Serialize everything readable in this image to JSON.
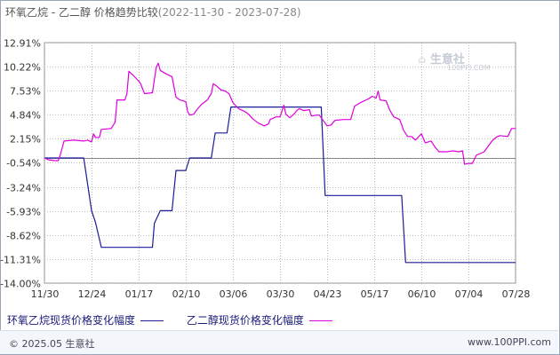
{
  "title": {
    "main": "环氧乙烷 - 乙二醇 价格趋势比较",
    "dates": "(2022-11-30 - 2023-07-28)"
  },
  "watermark": {
    "logo_text": "生意社",
    "url": "100PPI.COM"
  },
  "footer": {
    "left": "© 2025.05 生意社",
    "right": "www.100PPI.com"
  },
  "colors": {
    "series1": "#1c1c99",
    "series2": "#dd00dd",
    "grid": "#bbbbbb",
    "zero_line": "#888888"
  },
  "chart_data": {
    "type": "line",
    "y_ticks": [
      "12.91%",
      "10.22%",
      "7.53%",
      "4.84%",
      "2.15%",
      "-0.54%",
      "-3.24%",
      "-5.93%",
      "-8.62%",
      "-11.31%",
      "-14.00%"
    ],
    "y_values": [
      12.91,
      10.22,
      7.53,
      4.84,
      2.15,
      -0.54,
      -3.24,
      -5.93,
      -8.62,
      -11.31,
      -14.0
    ],
    "ylim": [
      -14.0,
      12.91
    ],
    "x_ticks": [
      "11/30",
      "12/24",
      "01/17",
      "02/10",
      "03/06",
      "03/30",
      "04/23",
      "05/17",
      "06/10",
      "07/04",
      "07/28"
    ],
    "x_dates": [
      "2022-11-30",
      "2022-12-24",
      "2023-01-17",
      "2023-02-10",
      "2023-03-06",
      "2023-03-30",
      "2023-04-23",
      "2023-05-17",
      "2023-06-10",
      "2023-07-04",
      "2023-07-28"
    ],
    "zero_line": 0,
    "grid": true,
    "legend_position": "bottom-left",
    "series": [
      {
        "name": "环氧乙烷现货价格变化幅度",
        "color": "#1c1c99",
        "points": [
          [
            "2022-11-30",
            0
          ],
          [
            "2022-12-20",
            0
          ],
          [
            "2022-12-24",
            -5.9
          ],
          [
            "2022-12-26",
            -7.2
          ],
          [
            "2022-12-29",
            -10.0
          ],
          [
            "2023-01-15",
            -10.0
          ],
          [
            "2023-01-18",
            -10.0
          ],
          [
            "2023-01-24",
            -10.0
          ],
          [
            "2023-01-25",
            -7.3
          ],
          [
            "2023-01-28",
            -5.9
          ],
          [
            "2023-02-03",
            -5.9
          ],
          [
            "2023-02-05",
            -1.4
          ],
          [
            "2023-02-10",
            -1.4
          ],
          [
            "2023-02-12",
            0
          ],
          [
            "2023-02-23",
            0
          ],
          [
            "2023-02-25",
            2.8
          ],
          [
            "2023-03-03",
            2.8
          ],
          [
            "2023-03-05",
            5.7
          ],
          [
            "2023-04-20",
            5.7
          ],
          [
            "2023-04-22",
            -4.2
          ],
          [
            "2023-05-31",
            -4.2
          ],
          [
            "2023-06-02",
            -11.7
          ],
          [
            "2023-07-28",
            -11.7
          ]
        ]
      },
      {
        "name": "乙二醇现货价格变化幅度",
        "color": "#dd00dd",
        "points": [
          [
            "2022-11-30",
            0
          ],
          [
            "2022-12-02",
            -0.2
          ],
          [
            "2022-12-05",
            -0.3
          ],
          [
            "2022-12-07",
            -0.3
          ],
          [
            "2022-12-08",
            0.3
          ],
          [
            "2022-12-10",
            1.9
          ],
          [
            "2022-12-15",
            2.0
          ],
          [
            "2022-12-20",
            1.9
          ],
          [
            "2022-12-22",
            2.0
          ],
          [
            "2022-12-24",
            1.8
          ],
          [
            "2022-12-25",
            2.7
          ],
          [
            "2022-12-26",
            2.3
          ],
          [
            "2022-12-28",
            2.3
          ],
          [
            "2022-12-29",
            3.2
          ],
          [
            "2023-01-03",
            3.3
          ],
          [
            "2023-01-05",
            4.0
          ],
          [
            "2023-01-06",
            6.5
          ],
          [
            "2023-01-08",
            6.5
          ],
          [
            "2023-01-10",
            6.5
          ],
          [
            "2023-01-11",
            7.2
          ],
          [
            "2023-01-12",
            9.7
          ],
          [
            "2023-01-14",
            9.3
          ],
          [
            "2023-01-17",
            8.6
          ],
          [
            "2023-01-18",
            8.3
          ],
          [
            "2023-01-20",
            7.2
          ],
          [
            "2023-01-24",
            7.3
          ],
          [
            "2023-01-25",
            8.8
          ],
          [
            "2023-01-26",
            10.2
          ],
          [
            "2023-01-27",
            10.6
          ],
          [
            "2023-01-28",
            9.8
          ],
          [
            "2023-01-31",
            9.4
          ],
          [
            "2023-02-03",
            9.1
          ],
          [
            "2023-02-05",
            6.8
          ],
          [
            "2023-02-07",
            6.5
          ],
          [
            "2023-02-10",
            6.3
          ],
          [
            "2023-02-11",
            5.2
          ],
          [
            "2023-02-12",
            4.8
          ],
          [
            "2023-02-14",
            4.9
          ],
          [
            "2023-02-16",
            5.5
          ],
          [
            "2023-02-18",
            6.0
          ],
          [
            "2023-02-21",
            6.5
          ],
          [
            "2023-02-23",
            7.2
          ],
          [
            "2023-02-24",
            8.3
          ],
          [
            "2023-02-26",
            8.0
          ],
          [
            "2023-02-28",
            7.6
          ],
          [
            "2023-03-02",
            7.5
          ],
          [
            "2023-03-04",
            7.2
          ],
          [
            "2023-03-06",
            6.2
          ],
          [
            "2023-03-09",
            5.5
          ],
          [
            "2023-03-12",
            5.2
          ],
          [
            "2023-03-14",
            4.9
          ],
          [
            "2023-03-16",
            4.4
          ],
          [
            "2023-03-19",
            3.9
          ],
          [
            "2023-03-22",
            3.6
          ],
          [
            "2023-03-24",
            3.8
          ],
          [
            "2023-03-25",
            4.3
          ],
          [
            "2023-03-28",
            4.6
          ],
          [
            "2023-03-30",
            4.6
          ],
          [
            "2023-04-01",
            5.9
          ],
          [
            "2023-04-02",
            4.9
          ],
          [
            "2023-04-04",
            4.5
          ],
          [
            "2023-04-06",
            4.9
          ],
          [
            "2023-04-08",
            5.4
          ],
          [
            "2023-04-09",
            5.5
          ],
          [
            "2023-04-11",
            5.3
          ],
          [
            "2023-04-14",
            5.4
          ],
          [
            "2023-04-15",
            4.7
          ],
          [
            "2023-04-18",
            4.8
          ],
          [
            "2023-04-19",
            4.8
          ],
          [
            "2023-04-21",
            4.2
          ],
          [
            "2023-04-23",
            3.6
          ],
          [
            "2023-04-25",
            3.7
          ],
          [
            "2023-04-27",
            4.2
          ],
          [
            "2023-05-01",
            4.3
          ],
          [
            "2023-05-05",
            4.3
          ],
          [
            "2023-05-07",
            5.8
          ],
          [
            "2023-05-10",
            6.2
          ],
          [
            "2023-05-14",
            6.6
          ],
          [
            "2023-05-16",
            6.9
          ],
          [
            "2023-05-18",
            6.7
          ],
          [
            "2023-05-19",
            7.5
          ],
          [
            "2023-05-20",
            6.5
          ],
          [
            "2023-05-23",
            6.4
          ],
          [
            "2023-05-25",
            5.3
          ],
          [
            "2023-05-27",
            4.6
          ],
          [
            "2023-05-30",
            4.3
          ],
          [
            "2023-06-01",
            3.1
          ],
          [
            "2023-06-03",
            2.4
          ],
          [
            "2023-06-05",
            2.4
          ],
          [
            "2023-06-07",
            2.0
          ],
          [
            "2023-06-10",
            2.7
          ],
          [
            "2023-06-12",
            1.7
          ],
          [
            "2023-06-15",
            1.9
          ],
          [
            "2023-06-17",
            1.2
          ],
          [
            "2023-06-19",
            0.7
          ],
          [
            "2023-06-23",
            0.7
          ],
          [
            "2023-06-26",
            0.8
          ],
          [
            "2023-06-29",
            0.7
          ],
          [
            "2023-07-01",
            0.8
          ],
          [
            "2023-07-02",
            -0.7
          ],
          [
            "2023-07-04",
            -0.6
          ],
          [
            "2023-07-06",
            -0.6
          ],
          [
            "2023-07-08",
            0.3
          ],
          [
            "2023-07-12",
            0.7
          ],
          [
            "2023-07-14",
            1.3
          ],
          [
            "2023-07-16",
            1.9
          ],
          [
            "2023-07-18",
            2.3
          ],
          [
            "2023-07-20",
            2.5
          ],
          [
            "2023-07-24",
            2.4
          ],
          [
            "2023-07-26",
            3.3
          ],
          [
            "2023-07-28",
            3.3
          ]
        ]
      }
    ]
  }
}
